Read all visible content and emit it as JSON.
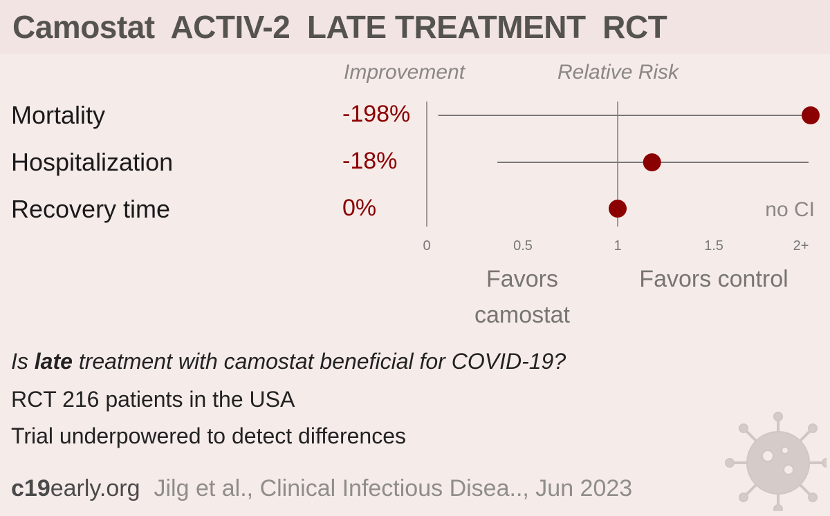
{
  "title": "Camostat  ACTIV-2  LATE TREATMENT  RCT",
  "headers": {
    "improvement": "Improvement",
    "relative_risk": "Relative Risk"
  },
  "rows": [
    {
      "label": "Mortality",
      "improvement": "-198%"
    },
    {
      "label": "Hospitalization",
      "improvement": "-18%"
    },
    {
      "label": "Recovery time",
      "improvement": "0%"
    }
  ],
  "no_ci_label": "no CI",
  "favors": {
    "left": "Favors camostat",
    "right": "Favors control"
  },
  "question": {
    "pre": "Is ",
    "bold": "late",
    "post": " treatment with camostat beneficial for COVID-19?"
  },
  "info_lines": [
    "RCT 216 patients in the USA",
    "Trial underpowered to detect differences"
  ],
  "footer": {
    "site_bold": "c19",
    "site_rest": "early.org",
    "citation": "Jilg et al., Clinical Infectious Disea.., Jun 2023"
  },
  "colors": {
    "point": "#8b0000",
    "improvement_text": "#8b0000",
    "background": "#f5ebe9",
    "header_band": "#f1e4e2"
  },
  "chart_data": {
    "type": "scatter",
    "x_axis": {
      "label": "Relative Risk",
      "ticks": [
        "0",
        "0.5",
        "1",
        "1.5",
        "2+"
      ],
      "range": [
        0,
        2
      ]
    },
    "reference_line": 1,
    "series": [
      {
        "category": "Mortality",
        "rr": 2.98,
        "ci_low": 0.06,
        "ci_high": 2.3,
        "ci_clipped_high": true
      },
      {
        "category": "Hospitalization",
        "rr": 1.18,
        "ci_low": 0.37,
        "ci_high": 2.0,
        "ci_clipped_high": true
      },
      {
        "category": "Recovery time",
        "rr": 1.0,
        "ci_low": null,
        "ci_high": null
      }
    ]
  }
}
